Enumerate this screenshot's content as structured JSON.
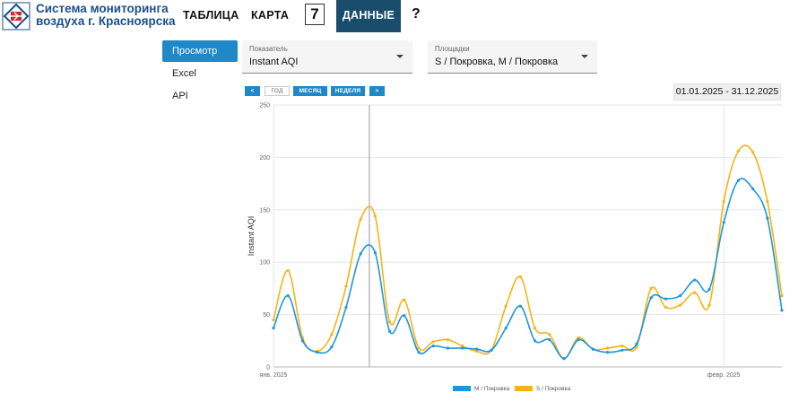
{
  "header": {
    "brand_line1": "Система мониторинга",
    "brand_line2": "воздуха г. Красноярска",
    "nav": {
      "table": "ТАБЛИЦА",
      "map": "КАРТА",
      "seven": "7",
      "data": "ДАННЫЕ",
      "help": "?"
    }
  },
  "sidebar": {
    "items": [
      {
        "label": "Просмотр",
        "active": true
      },
      {
        "label": "Excel",
        "active": false
      },
      {
        "label": "API",
        "active": false
      }
    ]
  },
  "filters": {
    "indicator": {
      "label": "Показатель",
      "value": "Instant AQI"
    },
    "sites": {
      "label": "Площадки",
      "value": "S / Покровка, M / Покровка"
    }
  },
  "period": {
    "prev": "<",
    "year": "ГОД",
    "month": "МЕСЯЦ",
    "week": "НЕДЕЛЯ",
    "next": ">",
    "range": "01.01.2025 - 31.12.2025"
  },
  "colors": {
    "accent": "#1e88c8",
    "nav_active": "#1a4d6b",
    "series_m": "#1f96dc",
    "series_s": "#f5b416"
  },
  "chart_data": {
    "type": "line",
    "ylabel": "Instant AQI",
    "ylim": [
      0,
      250
    ],
    "yticks": [
      0,
      50,
      100,
      150,
      200,
      250
    ],
    "x_tick_labels": [
      {
        "label": "янв. 2025",
        "day": 1
      },
      {
        "label": "февр. 2025",
        "day": 32
      }
    ],
    "x_range_days": [
      1,
      36
    ],
    "crosshair_day": 7.6,
    "series": [
      {
        "name": "M / Покровка",
        "color": "#1f96dc",
        "x": [
          1,
          2,
          3,
          4,
          5,
          6,
          7,
          8,
          9,
          10,
          11,
          12,
          13,
          14,
          15,
          16,
          17,
          18,
          19,
          20,
          21,
          22,
          23,
          24,
          25,
          26,
          27,
          28,
          29,
          30,
          31,
          32,
          33,
          34,
          35,
          36
        ],
        "values": [
          37,
          68,
          25,
          14,
          19,
          57,
          108,
          109,
          34,
          49,
          14,
          20,
          18,
          18,
          17,
          16,
          37,
          58,
          25,
          26,
          8,
          26,
          17,
          14,
          16,
          22,
          66,
          65,
          68,
          83,
          74,
          138,
          178,
          170,
          142,
          54
        ]
      },
      {
        "name": "S / Покровка",
        "color": "#f5b416",
        "x": [
          1,
          2,
          3,
          4,
          5,
          6,
          7,
          8,
          9,
          10,
          11,
          12,
          13,
          14,
          15,
          16,
          17,
          18,
          19,
          20,
          21,
          22,
          23,
          24,
          25,
          26,
          27,
          28,
          29,
          30,
          31,
          32,
          33,
          34,
          35,
          36
        ],
        "values": [
          45,
          92,
          28,
          15,
          31,
          77,
          141,
          144,
          43,
          64,
          18,
          24,
          26,
          20,
          15,
          16,
          58,
          86,
          37,
          31,
          8,
          28,
          17,
          18,
          20,
          19,
          75,
          57,
          59,
          71,
          59,
          158,
          206,
          205,
          158,
          68
        ]
      }
    ]
  }
}
